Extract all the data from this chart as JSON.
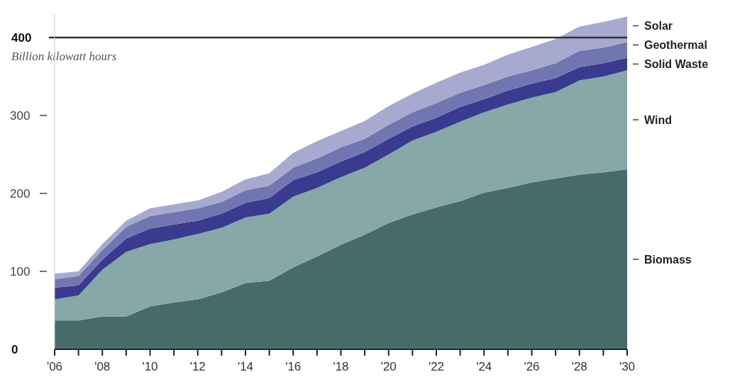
{
  "chart_data": {
    "type": "area",
    "stacked": true,
    "ylabel": "Billion kilowatt hours",
    "x": [
      2006,
      2007,
      2008,
      2009,
      2010,
      2011,
      2012,
      2013,
      2014,
      2015,
      2016,
      2017,
      2018,
      2019,
      2020,
      2021,
      2022,
      2023,
      2024,
      2025,
      2026,
      2027,
      2028,
      2029,
      2030
    ],
    "series": [
      {
        "name": "Biomass",
        "color": "#476b6b",
        "values": [
          37,
          37,
          42,
          42,
          55,
          60,
          64,
          73,
          85,
          88,
          105,
          119,
          134,
          147,
          162,
          173,
          182,
          190,
          201,
          207,
          214,
          219,
          224,
          227,
          231
        ]
      },
      {
        "name": "Wind",
        "color": "#86a8a6",
        "values": [
          27,
          32,
          60,
          83,
          80,
          81,
          84,
          83,
          84,
          86,
          91,
          88,
          87,
          86,
          88,
          95,
          97,
          102,
          103,
          107,
          109,
          111,
          121,
          123,
          127
        ]
      },
      {
        "name": "Solid Waste",
        "color": "#3a3a8f",
        "values": [
          15,
          13,
          13,
          17,
          20,
          19,
          17,
          18,
          19,
          20,
          21,
          20,
          20,
          20,
          20,
          18,
          18,
          19,
          17,
          18,
          18,
          18,
          17,
          17,
          16
        ]
      },
      {
        "name": "Geothermal",
        "color": "#7276b0",
        "values": [
          11,
          12,
          12,
          15,
          16,
          16,
          16,
          15,
          16,
          16,
          16,
          18,
          18,
          17,
          18,
          18,
          19,
          18,
          18,
          18,
          17,
          19,
          21,
          20,
          20
        ]
      },
      {
        "name": "Solar",
        "color": "#a7a9cf",
        "values": [
          7,
          6,
          8,
          8,
          10,
          10,
          10,
          13,
          14,
          16,
          19,
          22,
          21,
          23,
          24,
          24,
          26,
          26,
          26,
          28,
          30,
          31,
          31,
          33,
          33
        ]
      }
    ],
    "xlim": [
      2006,
      2030
    ],
    "xticks": [
      {
        "value": 2006,
        "label": "'06"
      },
      {
        "value": 2007,
        "label": null
      },
      {
        "value": 2008,
        "label": "'08"
      },
      {
        "value": 2009,
        "label": null
      },
      {
        "value": 2010,
        "label": "'10"
      },
      {
        "value": 2011,
        "label": null
      },
      {
        "value": 2012,
        "label": "'12"
      },
      {
        "value": 2013,
        "label": null
      },
      {
        "value": 2014,
        "label": "'14"
      },
      {
        "value": 2015,
        "label": null
      },
      {
        "value": 2016,
        "label": "'16"
      },
      {
        "value": 2017,
        "label": null
      },
      {
        "value": 2018,
        "label": "'18"
      },
      {
        "value": 2019,
        "label": null
      },
      {
        "value": 2020,
        "label": "'20"
      },
      {
        "value": 2021,
        "label": null
      },
      {
        "value": 2022,
        "label": "'22"
      },
      {
        "value": 2023,
        "label": null
      },
      {
        "value": 2024,
        "label": "'24"
      },
      {
        "value": 2025,
        "label": null
      },
      {
        "value": 2026,
        "label": "'26"
      },
      {
        "value": 2027,
        "label": null
      },
      {
        "value": 2028,
        "label": "'28"
      },
      {
        "value": 2029,
        "label": null
      },
      {
        "value": 2030,
        "label": "'30"
      }
    ],
    "ylim": [
      0,
      430
    ],
    "yticks": [
      0,
      100,
      200,
      300,
      400
    ],
    "ref_lines": [
      {
        "axis": "y",
        "value": 400,
        "color": "#333333"
      }
    ],
    "legend": "right"
  }
}
